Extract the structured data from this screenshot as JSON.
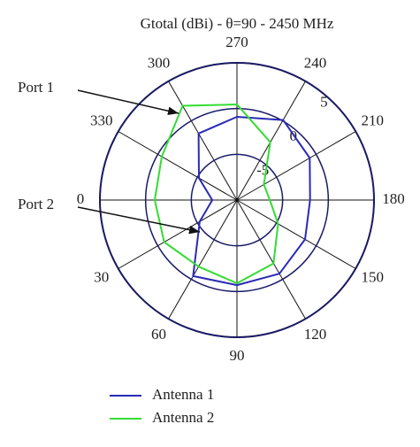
{
  "chart_data": {
    "type": "polar",
    "title": "Gtotal (dBi) - θ=90 - 2450 MHz",
    "theta": [
      0,
      30,
      60,
      90,
      120,
      150,
      180,
      210,
      240,
      270,
      300,
      330
    ],
    "series": [
      {
        "name": "Antenna 1",
        "color": "#2a2ab8",
        "values": [
          -7.3,
          -5.3,
          -0.4,
          -0.7,
          -0.7,
          -1.4,
          -2,
          -0.8,
          0.1,
          -0.9,
          -1.6,
          -5.2
        ]
      },
      {
        "name": "Antenna 2",
        "color": "#33dd33",
        "values": [
          -1,
          -0.8,
          -1.6,
          -0.9,
          -2,
          -4.8,
          -6.4,
          -6.6,
          -2.7,
          0.45,
          1.9,
          -0.5
        ]
      }
    ],
    "rlim": [
      -10,
      5
    ],
    "rticks": [
      -5,
      0,
      5
    ],
    "thetaticks": [
      0,
      30,
      60,
      90,
      120,
      150,
      180,
      210,
      240,
      270,
      300,
      330
    ],
    "annotations": [
      {
        "text": "Port 1"
      },
      {
        "text": "Port 2"
      }
    ]
  }
}
